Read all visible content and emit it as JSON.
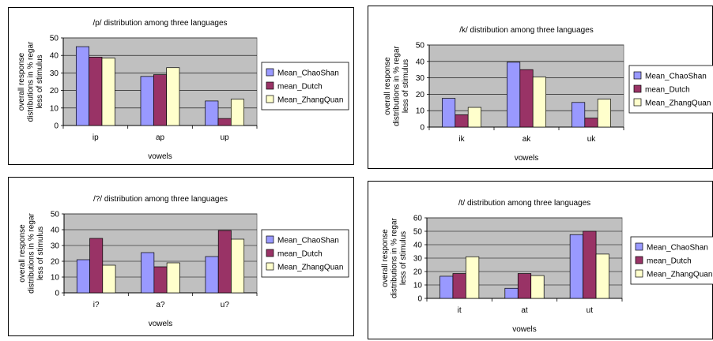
{
  "colors": {
    "plot_background": "#c0c0c0",
    "grid": "#000000",
    "series": [
      "#9999ff",
      "#993366",
      "#ffffcc"
    ]
  },
  "chart_data": [
    {
      "type": "bar",
      "title": "/p/ distribution among three languages",
      "xlabel": "vowels",
      "ylabel": "overall response distributions in % regardless of stimulus",
      "ylim": [
        0,
        50
      ],
      "yticks": [
        0,
        10,
        20,
        30,
        40,
        50
      ],
      "grid": true,
      "legend_position": "right",
      "categories": [
        "ip",
        "ap",
        "up"
      ],
      "series": [
        {
          "name": "Mean_ChaoShan",
          "values": [
            45,
            28,
            14
          ]
        },
        {
          "name": "mean_Dutch",
          "values": [
            39,
            29,
            4
          ]
        },
        {
          "name": "Mean_ZhangQuan",
          "values": [
            38.5,
            33,
            15
          ]
        }
      ]
    },
    {
      "type": "bar",
      "title": "/k/ distribution among three languages",
      "xlabel": "vowels",
      "ylabel": "overall response distributions in % regardless of stimulus",
      "ylim": [
        0,
        50
      ],
      "yticks": [
        0,
        10,
        20,
        30,
        40,
        50
      ],
      "grid": true,
      "legend_position": "right",
      "categories": [
        "ik",
        "ak",
        "uk"
      ],
      "series": [
        {
          "name": "Mean_ChaoShan",
          "values": [
            17.5,
            39.5,
            15
          ]
        },
        {
          "name": "mean_Dutch",
          "values": [
            7.5,
            35,
            5.5
          ]
        },
        {
          "name": "Mean_ZhangQuan",
          "values": [
            12,
            30.5,
            17
          ]
        }
      ]
    },
    {
      "type": "bar",
      "title": "/?/ distribution among three languages",
      "xlabel": "vowels",
      "ylabel": "overall response distributions in % regardless of stimulus",
      "ylim": [
        0,
        50
      ],
      "yticks": [
        0,
        10,
        20,
        30,
        40,
        50
      ],
      "grid": true,
      "legend_position": "right",
      "categories": [
        "i?",
        "a?",
        "u?"
      ],
      "series": [
        {
          "name": "Mean_ChaoShan",
          "values": [
            21,
            25.5,
            23
          ]
        },
        {
          "name": "mean_Dutch",
          "values": [
            34.5,
            16.5,
            39.5
          ]
        },
        {
          "name": "Mean_ZhangQuan",
          "values": [
            17.5,
            19,
            34
          ]
        }
      ]
    },
    {
      "type": "bar",
      "title": "/t/ distribution among three languages",
      "xlabel": "vowels",
      "ylabel": "overall response distributions in % regardless of stimulus",
      "ylim": [
        0,
        60
      ],
      "yticks": [
        0,
        10,
        20,
        30,
        40,
        50,
        60
      ],
      "grid": true,
      "legend_position": "right",
      "categories": [
        "it",
        "at",
        "ut"
      ],
      "series": [
        {
          "name": "Mean_ChaoShan",
          "values": [
            16.5,
            7.5,
            47.5
          ]
        },
        {
          "name": "mean_Dutch",
          "values": [
            18.5,
            18.5,
            50
          ]
        },
        {
          "name": "Mean_ZhangQuan",
          "values": [
            31,
            17,
            33
          ]
        }
      ]
    }
  ]
}
